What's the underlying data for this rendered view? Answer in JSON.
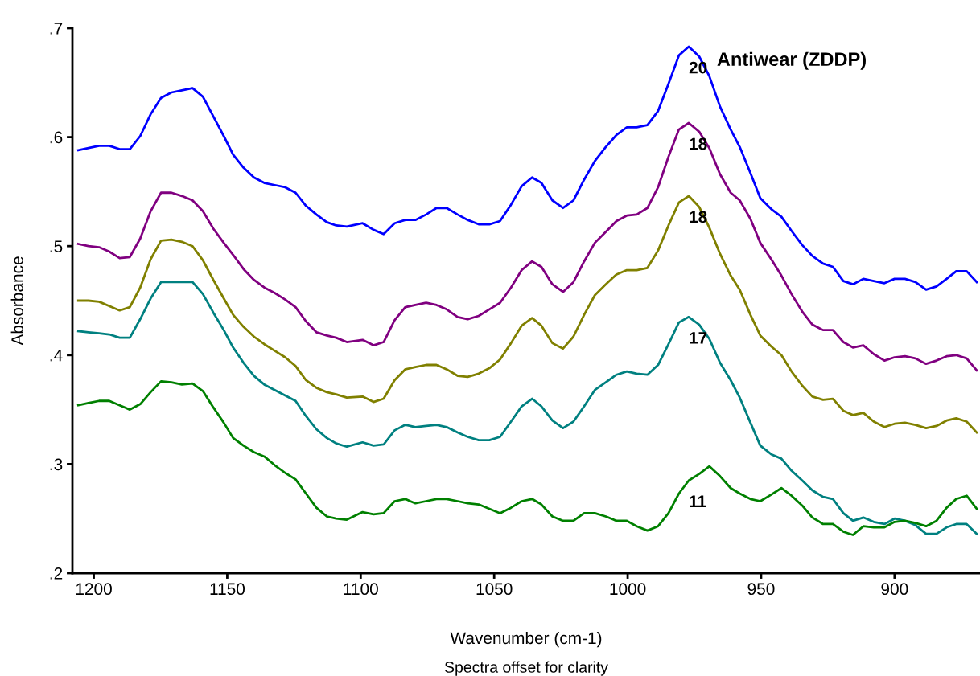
{
  "chart_data": {
    "type": "line",
    "xlabel": "Wavenumber (cm-1)",
    "ylabel": "Absorbance",
    "annotations": [
      "Antiwear (ZDDP)",
      "Spectra offset for clarity"
    ],
    "x": [
      1205.8,
      1202.0,
      1198.0,
      1194.2,
      1190.3,
      1186.5,
      1182.6,
      1178.7,
      1174.8,
      1170.9,
      1167.0,
      1163.0,
      1159.1,
      1155.2,
      1151.3,
      1147.8,
      1143.9,
      1140.0,
      1136.1,
      1132.2,
      1128.3,
      1124.4,
      1120.5,
      1116.6,
      1112.7,
      1109.2,
      1105.2,
      1099.3,
      1095.2,
      1091.4,
      1087.3,
      1083.3,
      1079.5,
      1075.5,
      1071.6,
      1067.8,
      1063.7,
      1059.9,
      1055.8,
      1051.8,
      1047.8,
      1043.7,
      1039.7,
      1035.8,
      1032.3,
      1028.2,
      1024.2,
      1020.3,
      1016.3,
      1012.3,
      1008.2,
      1004.2,
      1000.3,
      996.6,
      992.6,
      988.6,
      984.7,
      980.8,
      977.1,
      973.2,
      969.4,
      965.4,
      961.4,
      958.0,
      954.0,
      950.3,
      946.2,
      942.4,
      938.6,
      934.6,
      930.8,
      926.8,
      923.1,
      919.2,
      915.6,
      911.7,
      907.8,
      903.8,
      900.0,
      896.1,
      892.2,
      888.2,
      884.3,
      880.5,
      876.9,
      873.0,
      869.2
    ],
    "series": [
      {
        "name": "20",
        "color": "#0000ff",
        "values": [
          0.588,
          0.59,
          0.592,
          0.592,
          0.589,
          0.589,
          0.601,
          0.621,
          0.636,
          0.641,
          0.643,
          0.645,
          0.637,
          0.619,
          0.601,
          0.584,
          0.572,
          0.563,
          0.558,
          0.556,
          0.554,
          0.549,
          0.537,
          0.529,
          0.522,
          0.519,
          0.518,
          0.521,
          0.515,
          0.511,
          0.521,
          0.524,
          0.524,
          0.529,
          0.535,
          0.535,
          0.529,
          0.524,
          0.52,
          0.52,
          0.523,
          0.538,
          0.555,
          0.563,
          0.558,
          0.542,
          0.535,
          0.542,
          0.561,
          0.578,
          0.591,
          0.602,
          0.609,
          0.609,
          0.611,
          0.624,
          0.649,
          0.675,
          0.683,
          0.674,
          0.656,
          0.628,
          0.607,
          0.591,
          0.567,
          0.544,
          0.534,
          0.527,
          0.514,
          0.501,
          0.491,
          0.484,
          0.481,
          0.468,
          0.465,
          0.47,
          0.468,
          0.466,
          0.47,
          0.47,
          0.467,
          0.46,
          0.463,
          0.47,
          0.477,
          0.477,
          0.467
        ]
      },
      {
        "name": "18",
        "color": "#800080",
        "values": [
          0.502,
          0.5,
          0.499,
          0.495,
          0.489,
          0.49,
          0.507,
          0.532,
          0.549,
          0.549,
          0.546,
          0.542,
          0.532,
          0.516,
          0.503,
          0.492,
          0.479,
          0.469,
          0.462,
          0.457,
          0.451,
          0.444,
          0.431,
          0.421,
          0.418,
          0.416,
          0.412,
          0.414,
          0.409,
          0.412,
          0.432,
          0.444,
          0.446,
          0.448,
          0.446,
          0.442,
          0.435,
          0.433,
          0.436,
          0.442,
          0.448,
          0.462,
          0.478,
          0.486,
          0.481,
          0.465,
          0.458,
          0.467,
          0.486,
          0.503,
          0.513,
          0.523,
          0.528,
          0.529,
          0.535,
          0.554,
          0.582,
          0.607,
          0.613,
          0.605,
          0.59,
          0.566,
          0.549,
          0.542,
          0.525,
          0.503,
          0.488,
          0.473,
          0.456,
          0.44,
          0.428,
          0.423,
          0.423,
          0.412,
          0.407,
          0.409,
          0.401,
          0.395,
          0.398,
          0.399,
          0.397,
          0.392,
          0.395,
          0.399,
          0.4,
          0.397,
          0.386
        ]
      },
      {
        "name": "18",
        "color": "#808000",
        "values": [
          0.45,
          0.45,
          0.449,
          0.445,
          0.441,
          0.444,
          0.462,
          0.488,
          0.505,
          0.506,
          0.504,
          0.5,
          0.487,
          0.469,
          0.452,
          0.437,
          0.426,
          0.417,
          0.41,
          0.404,
          0.398,
          0.39,
          0.377,
          0.37,
          0.366,
          0.364,
          0.361,
          0.362,
          0.357,
          0.36,
          0.377,
          0.387,
          0.389,
          0.391,
          0.391,
          0.387,
          0.381,
          0.38,
          0.383,
          0.388,
          0.396,
          0.411,
          0.427,
          0.434,
          0.427,
          0.411,
          0.406,
          0.417,
          0.437,
          0.455,
          0.465,
          0.474,
          0.478,
          0.478,
          0.48,
          0.496,
          0.519,
          0.54,
          0.546,
          0.536,
          0.517,
          0.493,
          0.473,
          0.46,
          0.437,
          0.418,
          0.408,
          0.4,
          0.385,
          0.372,
          0.362,
          0.359,
          0.36,
          0.349,
          0.345,
          0.347,
          0.339,
          0.334,
          0.337,
          0.338,
          0.336,
          0.333,
          0.335,
          0.34,
          0.342,
          0.339,
          0.329
        ]
      },
      {
        "name": "17",
        "color": "#008080",
        "values": [
          0.422,
          0.421,
          0.42,
          0.419,
          0.416,
          0.416,
          0.433,
          0.452,
          0.467,
          0.467,
          0.467,
          0.467,
          0.456,
          0.439,
          0.423,
          0.407,
          0.393,
          0.381,
          0.373,
          0.368,
          0.363,
          0.358,
          0.344,
          0.332,
          0.324,
          0.319,
          0.316,
          0.32,
          0.317,
          0.318,
          0.331,
          0.336,
          0.334,
          0.335,
          0.336,
          0.334,
          0.329,
          0.325,
          0.322,
          0.322,
          0.325,
          0.339,
          0.353,
          0.36,
          0.353,
          0.34,
          0.333,
          0.339,
          0.353,
          0.368,
          0.375,
          0.382,
          0.385,
          0.383,
          0.382,
          0.391,
          0.41,
          0.43,
          0.435,
          0.428,
          0.415,
          0.393,
          0.377,
          0.361,
          0.338,
          0.317,
          0.309,
          0.305,
          0.294,
          0.285,
          0.276,
          0.27,
          0.268,
          0.255,
          0.248,
          0.251,
          0.247,
          0.245,
          0.25,
          0.248,
          0.244,
          0.236,
          0.236,
          0.242,
          0.245,
          0.245,
          0.236
        ]
      },
      {
        "name": "11",
        "color": "#008000",
        "values": [
          0.354,
          0.356,
          0.358,
          0.358,
          0.354,
          0.35,
          0.355,
          0.366,
          0.376,
          0.375,
          0.373,
          0.374,
          0.367,
          0.352,
          0.338,
          0.324,
          0.317,
          0.311,
          0.307,
          0.299,
          0.292,
          0.286,
          0.273,
          0.26,
          0.252,
          0.25,
          0.249,
          0.256,
          0.254,
          0.255,
          0.266,
          0.268,
          0.264,
          0.266,
          0.268,
          0.268,
          0.266,
          0.264,
          0.263,
          0.259,
          0.255,
          0.26,
          0.266,
          0.268,
          0.263,
          0.252,
          0.248,
          0.248,
          0.255,
          0.255,
          0.252,
          0.248,
          0.248,
          0.243,
          0.239,
          0.243,
          0.255,
          0.273,
          0.285,
          0.291,
          0.298,
          0.289,
          0.278,
          0.273,
          0.268,
          0.266,
          0.272,
          0.278,
          0.271,
          0.262,
          0.251,
          0.245,
          0.245,
          0.238,
          0.235,
          0.243,
          0.242,
          0.242,
          0.247,
          0.248,
          0.246,
          0.243,
          0.248,
          0.26,
          0.268,
          0.271,
          0.259
        ]
      }
    ],
    "xlim": [
      1208,
      868
    ],
    "xticks": [
      1200,
      1150,
      1100,
      1050,
      1000,
      950,
      900
    ],
    "ylim": [
      0.2,
      0.7
    ],
    "yticks": [
      {
        "value": 0.2,
        "label": ".2"
      },
      {
        "value": 0.3,
        "label": ".3"
      },
      {
        "value": 0.4,
        "label": ".4"
      },
      {
        "value": 0.5,
        "label": ".5"
      },
      {
        "value": 0.6,
        "label": ".6"
      },
      {
        "value": 0.7,
        "label": ".7"
      }
    ],
    "grid": false,
    "legend": false,
    "marker": "none",
    "line_style": "solid"
  }
}
